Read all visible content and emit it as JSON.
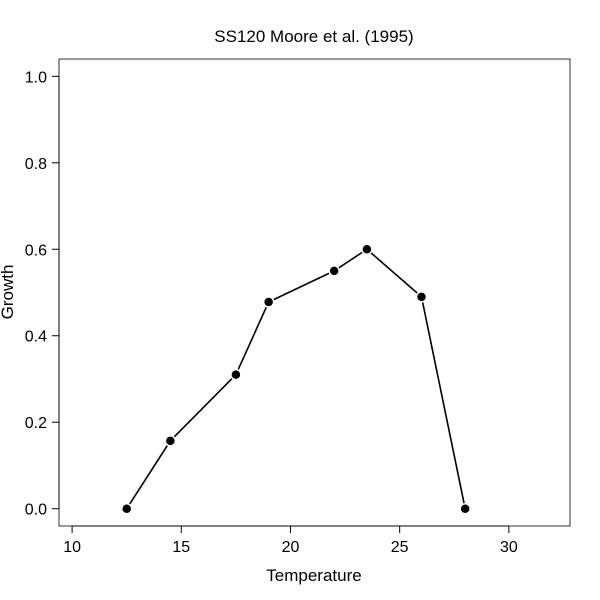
{
  "chart_data": {
    "type": "line",
    "title": "SS120 Moore et al. (1995)",
    "xlabel": "Temperature",
    "ylabel": "Growth",
    "xlim": [
      9.4,
      32.8
    ],
    "ylim": [
      -0.04,
      1.04
    ],
    "xticks": [
      10,
      15,
      20,
      25,
      30
    ],
    "xtick_labels": [
      "10",
      "15",
      "20",
      "25",
      "30"
    ],
    "yticks": [
      0.0,
      0.2,
      0.4,
      0.6,
      0.8,
      1.0
    ],
    "ytick_labels": [
      "0.0",
      "0.2",
      "0.4",
      "0.6",
      "0.8",
      "1.0"
    ],
    "grid": false,
    "series": [
      {
        "x": [
          12.5,
          14.5,
          17.5,
          19.0,
          22.0,
          23.5,
          26.0,
          28.0
        ],
        "values": [
          0.0,
          0.157,
          0.31,
          0.478,
          0.55,
          0.6,
          0.49,
          0.0
        ],
        "color": "#000000"
      }
    ]
  }
}
